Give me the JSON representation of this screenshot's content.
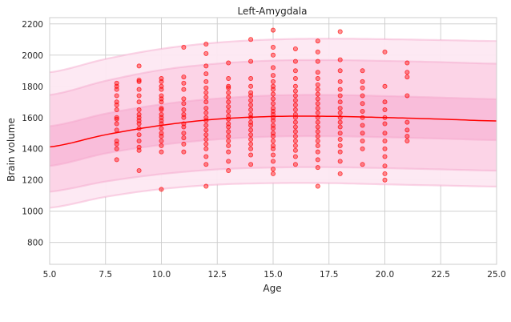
{
  "chart_data": {
    "type": "scatter",
    "title": "Left-Amygdala",
    "xlabel": "Age",
    "ylabel": "Brain volume",
    "xlim": [
      5,
      25
    ],
    "ylim": [
      660,
      2240
    ],
    "xticks": [
      5,
      7.5,
      10,
      12.5,
      15,
      17.5,
      20,
      22.5,
      25
    ],
    "xtick_labels": [
      "5.0",
      "7.5",
      "10.0",
      "12.5",
      "15.0",
      "17.5",
      "20.0",
      "22.5",
      "25.0"
    ],
    "yticks": [
      800,
      1000,
      1200,
      1400,
      1600,
      1800,
      2000,
      2200
    ],
    "ytick_labels": [
      "800",
      "1000",
      "1200",
      "1400",
      "1600",
      "1800",
      "2000",
      "2200"
    ],
    "grid": true,
    "colors": {
      "points": "#ff0000",
      "mean_line": "#ff0000",
      "band_outer": "#fde8f2",
      "band_middle": "#fcd3e6",
      "band_inner": "#f9bcd9",
      "band_edge": "#f5a3c9",
      "grid": "#cccccc"
    },
    "mean_curve": {
      "x": [
        5,
        7.5,
        10,
        12.5,
        15,
        17.5,
        20,
        22.5,
        25
      ],
      "y": [
        1412,
        1490,
        1550,
        1590,
        1607,
        1608,
        1600,
        1590,
        1578
      ]
    },
    "bands": [
      {
        "level": "outer",
        "lower": [
          1022,
          1092,
          1142,
          1170,
          1180,
          1180,
          1172,
          1165,
          1158
        ],
        "upper": [
          1890,
          1975,
          2040,
          2080,
          2100,
          2105,
          2102,
          2096,
          2090
        ]
      },
      {
        "level": "middle",
        "lower": [
          1125,
          1190,
          1238,
          1268,
          1280,
          1282,
          1276,
          1268,
          1260
        ],
        "upper": [
          1745,
          1835,
          1905,
          1945,
          1965,
          1968,
          1963,
          1955,
          1945
        ]
      },
      {
        "level": "inner",
        "lower": [
          1290,
          1370,
          1425,
          1460,
          1478,
          1480,
          1474,
          1465,
          1455
        ],
        "upper": [
          1545,
          1625,
          1685,
          1722,
          1742,
          1745,
          1738,
          1728,
          1718
        ]
      }
    ],
    "points": [
      [
        8,
        1330
      ],
      [
        8,
        1400
      ],
      [
        8,
        1430
      ],
      [
        8,
        1450
      ],
      [
        8,
        1520
      ],
      [
        8,
        1560
      ],
      [
        8,
        1590
      ],
      [
        8,
        1600
      ],
      [
        8,
        1650
      ],
      [
        8,
        1680
      ],
      [
        8,
        1700
      ],
      [
        8,
        1740
      ],
      [
        8,
        1780
      ],
      [
        8,
        1800
      ],
      [
        8,
        1820
      ],
      [
        9,
        1260
      ],
      [
        9,
        1390
      ],
      [
        9,
        1410
      ],
      [
        9,
        1450
      ],
      [
        9,
        1490
      ],
      [
        9,
        1530
      ],
      [
        9,
        1560
      ],
      [
        9,
        1580
      ],
      [
        9,
        1600
      ],
      [
        9,
        1620
      ],
      [
        9,
        1650
      ],
      [
        9,
        1700
      ],
      [
        9,
        1740
      ],
      [
        9,
        1780
      ],
      [
        9,
        1830
      ],
      [
        9,
        1840
      ],
      [
        9,
        1930
      ],
      [
        10,
        1140
      ],
      [
        10,
        1380
      ],
      [
        10,
        1420
      ],
      [
        10,
        1450
      ],
      [
        10,
        1480
      ],
      [
        10,
        1500
      ],
      [
        10,
        1530
      ],
      [
        10,
        1560
      ],
      [
        10,
        1580
      ],
      [
        10,
        1600
      ],
      [
        10,
        1620
      ],
      [
        10,
        1650
      ],
      [
        10,
        1660
      ],
      [
        10,
        1700
      ],
      [
        10,
        1720
      ],
      [
        10,
        1740
      ],
      [
        10,
        1780
      ],
      [
        10,
        1800
      ],
      [
        10,
        1830
      ],
      [
        10,
        1850
      ],
      [
        11,
        1380
      ],
      [
        11,
        1430
      ],
      [
        11,
        1470
      ],
      [
        11,
        1500
      ],
      [
        11,
        1540
      ],
      [
        11,
        1560
      ],
      [
        11,
        1600
      ],
      [
        11,
        1620
      ],
      [
        11,
        1650
      ],
      [
        11,
        1690
      ],
      [
        11,
        1720
      ],
      [
        11,
        1780
      ],
      [
        11,
        1820
      ],
      [
        11,
        1860
      ],
      [
        11,
        2050
      ],
      [
        12,
        1160
      ],
      [
        12,
        1300
      ],
      [
        12,
        1350
      ],
      [
        12,
        1400
      ],
      [
        12,
        1430
      ],
      [
        12,
        1460
      ],
      [
        12,
        1490
      ],
      [
        12,
        1520
      ],
      [
        12,
        1550
      ],
      [
        12,
        1580
      ],
      [
        12,
        1600
      ],
      [
        12,
        1630
      ],
      [
        12,
        1660
      ],
      [
        12,
        1700
      ],
      [
        12,
        1730
      ],
      [
        12,
        1760
      ],
      [
        12,
        1790
      ],
      [
        12,
        1830
      ],
      [
        12,
        1880
      ],
      [
        12,
        1930
      ],
      [
        12,
        2010
      ],
      [
        12,
        2070
      ],
      [
        13,
        1260
      ],
      [
        13,
        1320
      ],
      [
        13,
        1380
      ],
      [
        13,
        1420
      ],
      [
        13,
        1450
      ],
      [
        13,
        1480
      ],
      [
        13,
        1510
      ],
      [
        13,
        1540
      ],
      [
        13,
        1560
      ],
      [
        13,
        1590
      ],
      [
        13,
        1610
      ],
      [
        13,
        1640
      ],
      [
        13,
        1670
      ],
      [
        13,
        1700
      ],
      [
        13,
        1730
      ],
      [
        13,
        1760
      ],
      [
        13,
        1790
      ],
      [
        13,
        1800
      ],
      [
        13,
        1850
      ],
      [
        13,
        1950
      ],
      [
        14,
        1300
      ],
      [
        14,
        1360
      ],
      [
        14,
        1400
      ],
      [
        14,
        1430
      ],
      [
        14,
        1460
      ],
      [
        14,
        1490
      ],
      [
        14,
        1520
      ],
      [
        14,
        1550
      ],
      [
        14,
        1570
      ],
      [
        14,
        1600
      ],
      [
        14,
        1620
      ],
      [
        14,
        1650
      ],
      [
        14,
        1680
      ],
      [
        14,
        1710
      ],
      [
        14,
        1740
      ],
      [
        14,
        1760
      ],
      [
        14,
        1800
      ],
      [
        14,
        1850
      ],
      [
        14,
        1960
      ],
      [
        14,
        2100
      ],
      [
        15,
        1240
      ],
      [
        15,
        1270
      ],
      [
        15,
        1320
      ],
      [
        15,
        1360
      ],
      [
        15,
        1400
      ],
      [
        15,
        1420
      ],
      [
        15,
        1450
      ],
      [
        15,
        1480
      ],
      [
        15,
        1500
      ],
      [
        15,
        1530
      ],
      [
        15,
        1550
      ],
      [
        15,
        1580
      ],
      [
        15,
        1600
      ],
      [
        15,
        1620
      ],
      [
        15,
        1640
      ],
      [
        15,
        1660
      ],
      [
        15,
        1690
      ],
      [
        15,
        1720
      ],
      [
        15,
        1750
      ],
      [
        15,
        1780
      ],
      [
        15,
        1800
      ],
      [
        15,
        1830
      ],
      [
        15,
        1870
      ],
      [
        15,
        1920
      ],
      [
        15,
        2000
      ],
      [
        15,
        2050
      ],
      [
        15,
        2160
      ],
      [
        16,
        1300
      ],
      [
        16,
        1350
      ],
      [
        16,
        1390
      ],
      [
        16,
        1420
      ],
      [
        16,
        1450
      ],
      [
        16,
        1480
      ],
      [
        16,
        1510
      ],
      [
        16,
        1540
      ],
      [
        16,
        1570
      ],
      [
        16,
        1600
      ],
      [
        16,
        1620
      ],
      [
        16,
        1650
      ],
      [
        16,
        1680
      ],
      [
        16,
        1710
      ],
      [
        16,
        1740
      ],
      [
        16,
        1770
      ],
      [
        16,
        1800
      ],
      [
        16,
        1850
      ],
      [
        16,
        1900
      ],
      [
        16,
        1960
      ],
      [
        16,
        2040
      ],
      [
        17,
        1160
      ],
      [
        17,
        1280
      ],
      [
        17,
        1330
      ],
      [
        17,
        1380
      ],
      [
        17,
        1420
      ],
      [
        17,
        1450
      ],
      [
        17,
        1480
      ],
      [
        17,
        1510
      ],
      [
        17,
        1540
      ],
      [
        17,
        1570
      ],
      [
        17,
        1600
      ],
      [
        17,
        1630
      ],
      [
        17,
        1660
      ],
      [
        17,
        1690
      ],
      [
        17,
        1720
      ],
      [
        17,
        1750
      ],
      [
        17,
        1780
      ],
      [
        17,
        1810
      ],
      [
        17,
        1850
      ],
      [
        17,
        1890
      ],
      [
        17,
        1960
      ],
      [
        17,
        2020
      ],
      [
        17,
        2090
      ],
      [
        18,
        1240
      ],
      [
        18,
        1320
      ],
      [
        18,
        1380
      ],
      [
        18,
        1420
      ],
      [
        18,
        1460
      ],
      [
        18,
        1500
      ],
      [
        18,
        1540
      ],
      [
        18,
        1570
      ],
      [
        18,
        1600
      ],
      [
        18,
        1630
      ],
      [
        18,
        1660
      ],
      [
        18,
        1700
      ],
      [
        18,
        1740
      ],
      [
        18,
        1780
      ],
      [
        18,
        1830
      ],
      [
        18,
        1900
      ],
      [
        18,
        1970
      ],
      [
        18,
        2150
      ],
      [
        19,
        1300
      ],
      [
        19,
        1400
      ],
      [
        19,
        1450
      ],
      [
        19,
        1500
      ],
      [
        19,
        1550
      ],
      [
        19,
        1600
      ],
      [
        19,
        1640
      ],
      [
        19,
        1690
      ],
      [
        19,
        1740
      ],
      [
        19,
        1790
      ],
      [
        19,
        1830
      ],
      [
        19,
        1900
      ],
      [
        20,
        1200
      ],
      [
        20,
        1240
      ],
      [
        20,
        1290
      ],
      [
        20,
        1350
      ],
      [
        20,
        1400
      ],
      [
        20,
        1450
      ],
      [
        20,
        1500
      ],
      [
        20,
        1560
      ],
      [
        20,
        1600
      ],
      [
        20,
        1650
      ],
      [
        20,
        1700
      ],
      [
        20,
        1800
      ],
      [
        20,
        2020
      ],
      [
        21,
        1450
      ],
      [
        21,
        1480
      ],
      [
        21,
        1520
      ],
      [
        21,
        1570
      ],
      [
        21,
        1740
      ],
      [
        21,
        1860
      ],
      [
        21,
        1890
      ],
      [
        21,
        1950
      ]
    ]
  }
}
